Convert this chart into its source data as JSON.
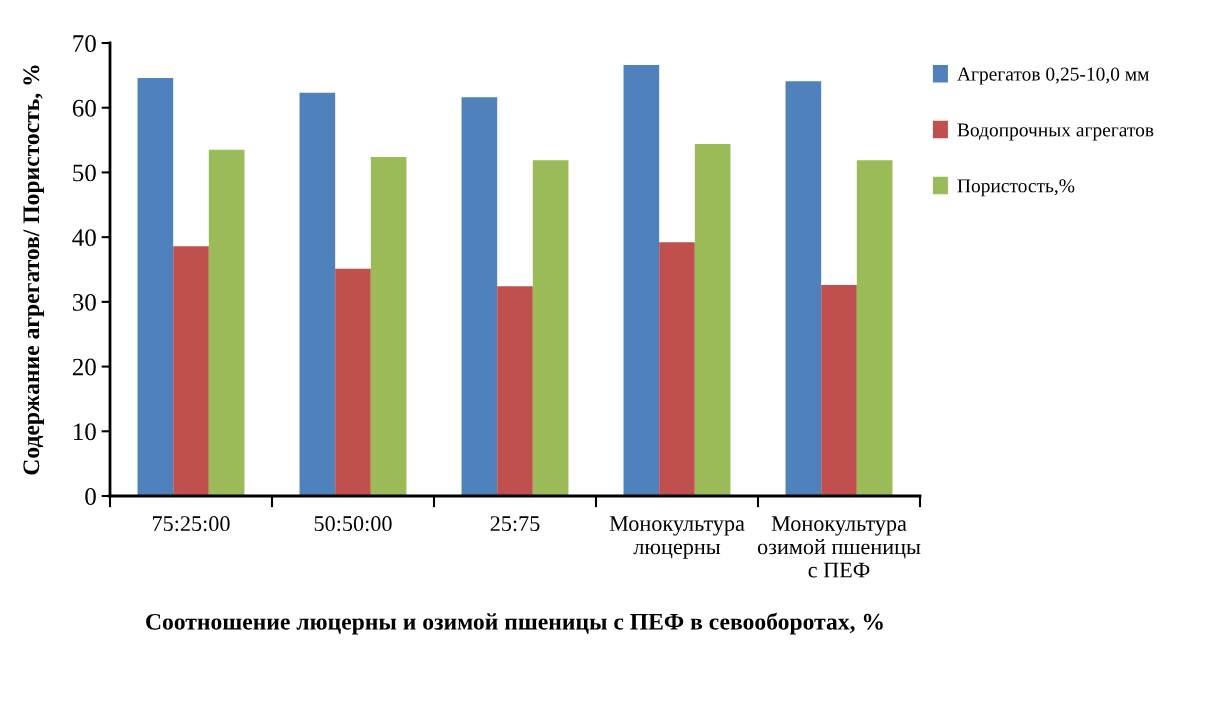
{
  "chart_data": {
    "type": "bar",
    "xlabel": "Соотношение люцерны и озимой пшеницы с ПЕФ в севооборотах, %",
    "ylabel": "Содержание агрегатов/ Пористость, %",
    "categories": [
      "75:25:00",
      "50:50:00",
      "25:75",
      "Монокультура\nлюцерны",
      "Монокультура\nозимой пшеницы\nс ПЕФ"
    ],
    "series": [
      {
        "name": "Агрегатов 0,25-10,0 мм",
        "color": "#4f81bd",
        "values": [
          64.6,
          62.3,
          61.6,
          66.6,
          64.1
        ]
      },
      {
        "name": "Водопрочных агрегатов",
        "color": "#c0504d",
        "values": [
          38.6,
          35.1,
          32.4,
          39.2,
          32.6
        ]
      },
      {
        "name": "Пористость,%",
        "color": "#9bbb59",
        "values": [
          53.5,
          52.4,
          51.9,
          54.4,
          51.9
        ]
      }
    ],
    "ylim": [
      0,
      70
    ],
    "yticks": [
      0,
      10,
      20,
      30,
      40,
      50,
      60,
      70
    ],
    "grid": false,
    "legend": "right"
  }
}
